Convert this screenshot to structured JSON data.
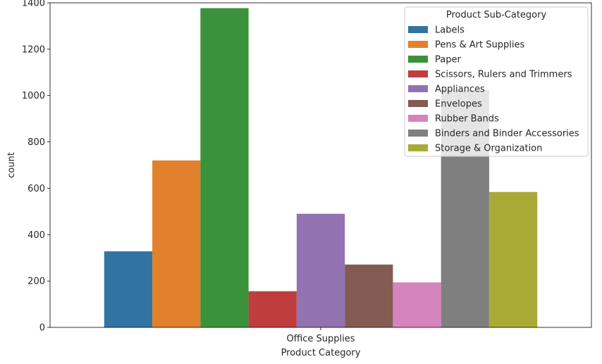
{
  "chart_data": {
    "type": "bar",
    "title": "",
    "xlabel": "Product Category",
    "ylabel": "count",
    "categories": [
      "Office Supplies"
    ],
    "ylim": [
      0,
      1400
    ],
    "yticks": [
      0,
      200,
      400,
      600,
      800,
      1000,
      1200,
      1400
    ],
    "grid": false,
    "legend": {
      "title": "Product Sub-Category",
      "placement": "top-right"
    },
    "series": [
      {
        "name": "Labels",
        "color": "#3274a1",
        "values": [
          328
        ]
      },
      {
        "name": "Pens & Art Supplies",
        "color": "#e1812c",
        "values": [
          720
        ]
      },
      {
        "name": "Paper",
        "color": "#3a923a",
        "values": [
          1377
        ]
      },
      {
        "name": "Scissors, Rulers and Trimmers",
        "color": "#c03d3e",
        "values": [
          156
        ]
      },
      {
        "name": "Appliances",
        "color": "#9372b2",
        "values": [
          490
        ]
      },
      {
        "name": "Envelopes",
        "color": "#845b53",
        "values": [
          271
        ]
      },
      {
        "name": "Rubber Bands",
        "color": "#d684bd",
        "values": [
          194
        ]
      },
      {
        "name": "Binders and Binder Accessories",
        "color": "#7f7f7f",
        "values": [
          1023
        ]
      },
      {
        "name": "Storage & Organization",
        "color": "#a9aa35",
        "values": [
          584
        ]
      }
    ]
  }
}
